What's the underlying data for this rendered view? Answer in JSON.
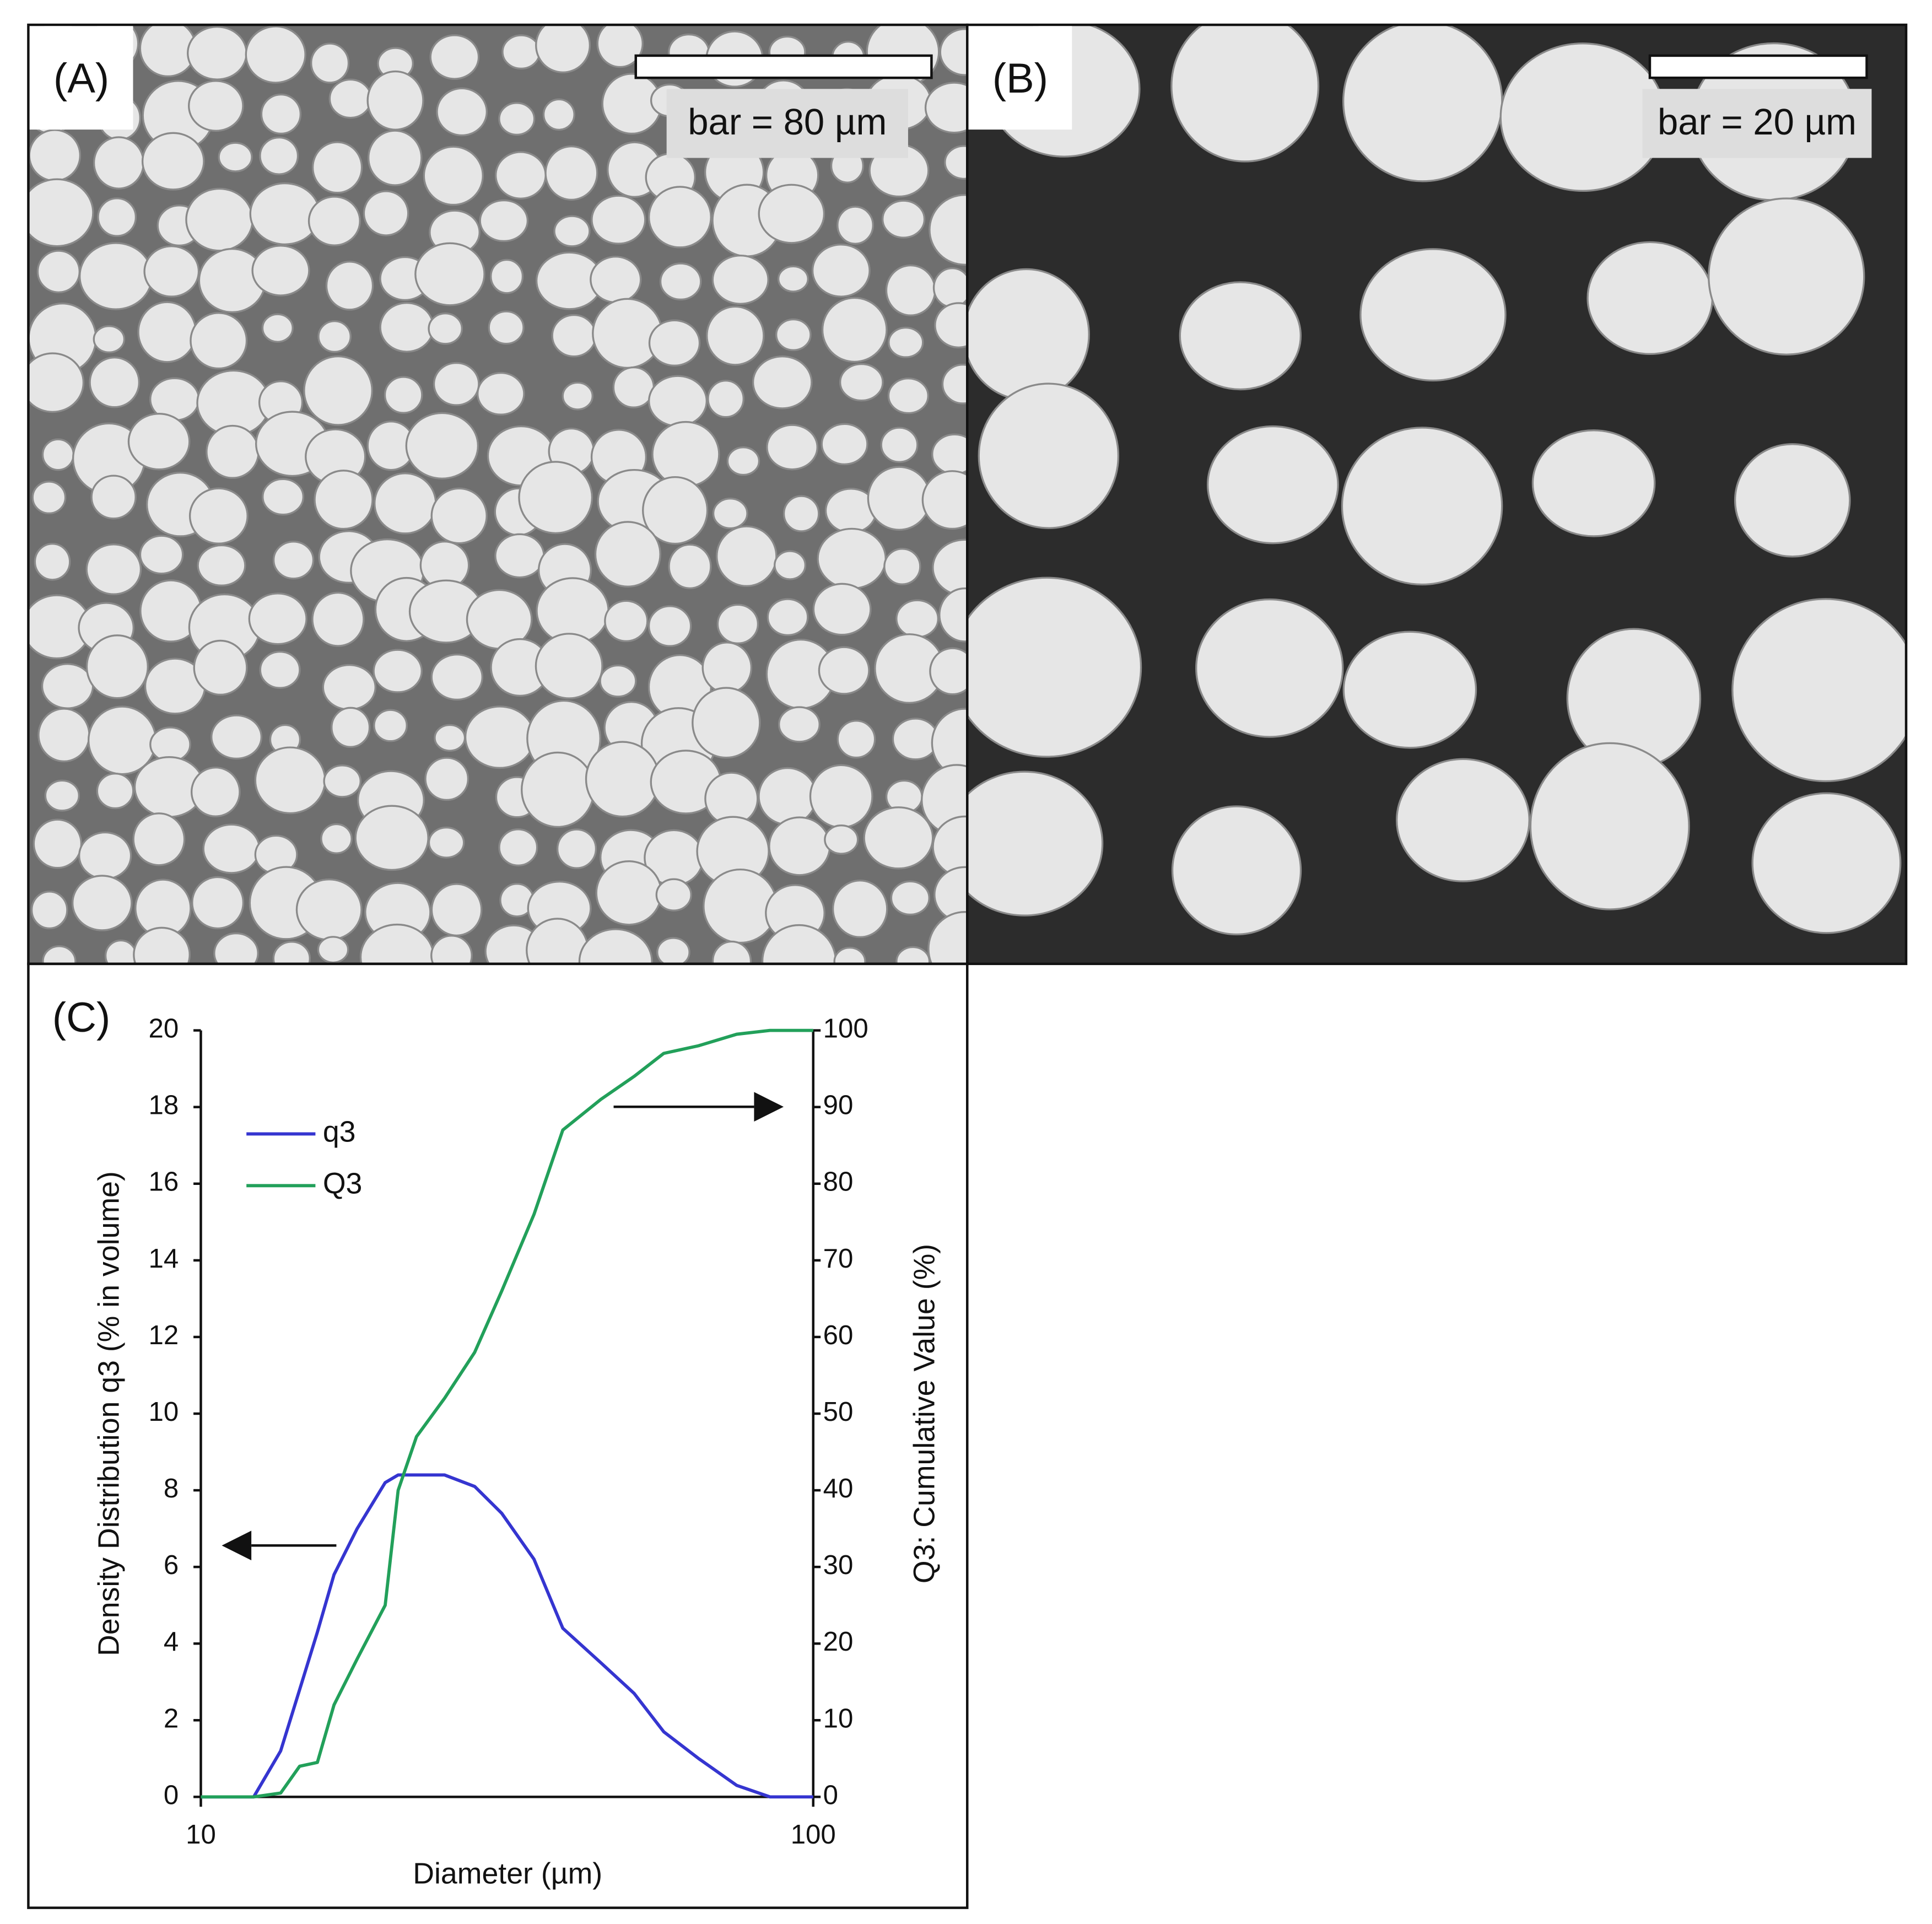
{
  "panels": [
    {
      "label": "(A)",
      "scale_bar": "bar = 80 µm"
    },
    {
      "label": "(B)",
      "scale_bar": "bar = 20 µm"
    }
  ],
  "chart_data": {
    "type": "line",
    "panel_label": "(C)",
    "x_label": "Diameter (µm)",
    "y_label": "Density Distribution q3 (% in volume)",
    "y2_label": "Q3: Cumulative Value (%)",
    "x_log": true,
    "xlim": [
      10,
      100
    ],
    "xticks": [
      10,
      100
    ],
    "ylim": [
      0,
      20
    ],
    "yticks": [
      0,
      2,
      4,
      6,
      8,
      10,
      12,
      14,
      16,
      18,
      20
    ],
    "y2lim": [
      0,
      100
    ],
    "y2ticks": [
      0,
      10,
      20,
      30,
      40,
      50,
      60,
      70,
      80,
      90,
      100
    ],
    "legend": "upper-left",
    "x": [
      10,
      12.2,
      13.5,
      14.5,
      15.5,
      16.5,
      18,
      20,
      21,
      22.5,
      25,
      28,
      31,
      35,
      39,
      45,
      51,
      57,
      65,
      75,
      85,
      100
    ],
    "series": [
      {
        "name": "q3",
        "color": "#3535d0",
        "values": [
          0,
          0,
          1.2,
          2.8,
          4.3,
          5.8,
          7.0,
          8.2,
          8.4,
          8.4,
          8.4,
          8.1,
          7.4,
          6.2,
          4.4,
          3.5,
          2.7,
          1.7,
          1.0,
          0.3,
          0,
          0
        ]
      },
      {
        "name": "Q3",
        "color": "#22a05a",
        "axis": "y2",
        "values": [
          0,
          0,
          0.5,
          4,
          4.5,
          12,
          18,
          25,
          40,
          47,
          52,
          58,
          66,
          76,
          87,
          91,
          94,
          97,
          98,
          99.5,
          100,
          100
        ]
      }
    ]
  }
}
